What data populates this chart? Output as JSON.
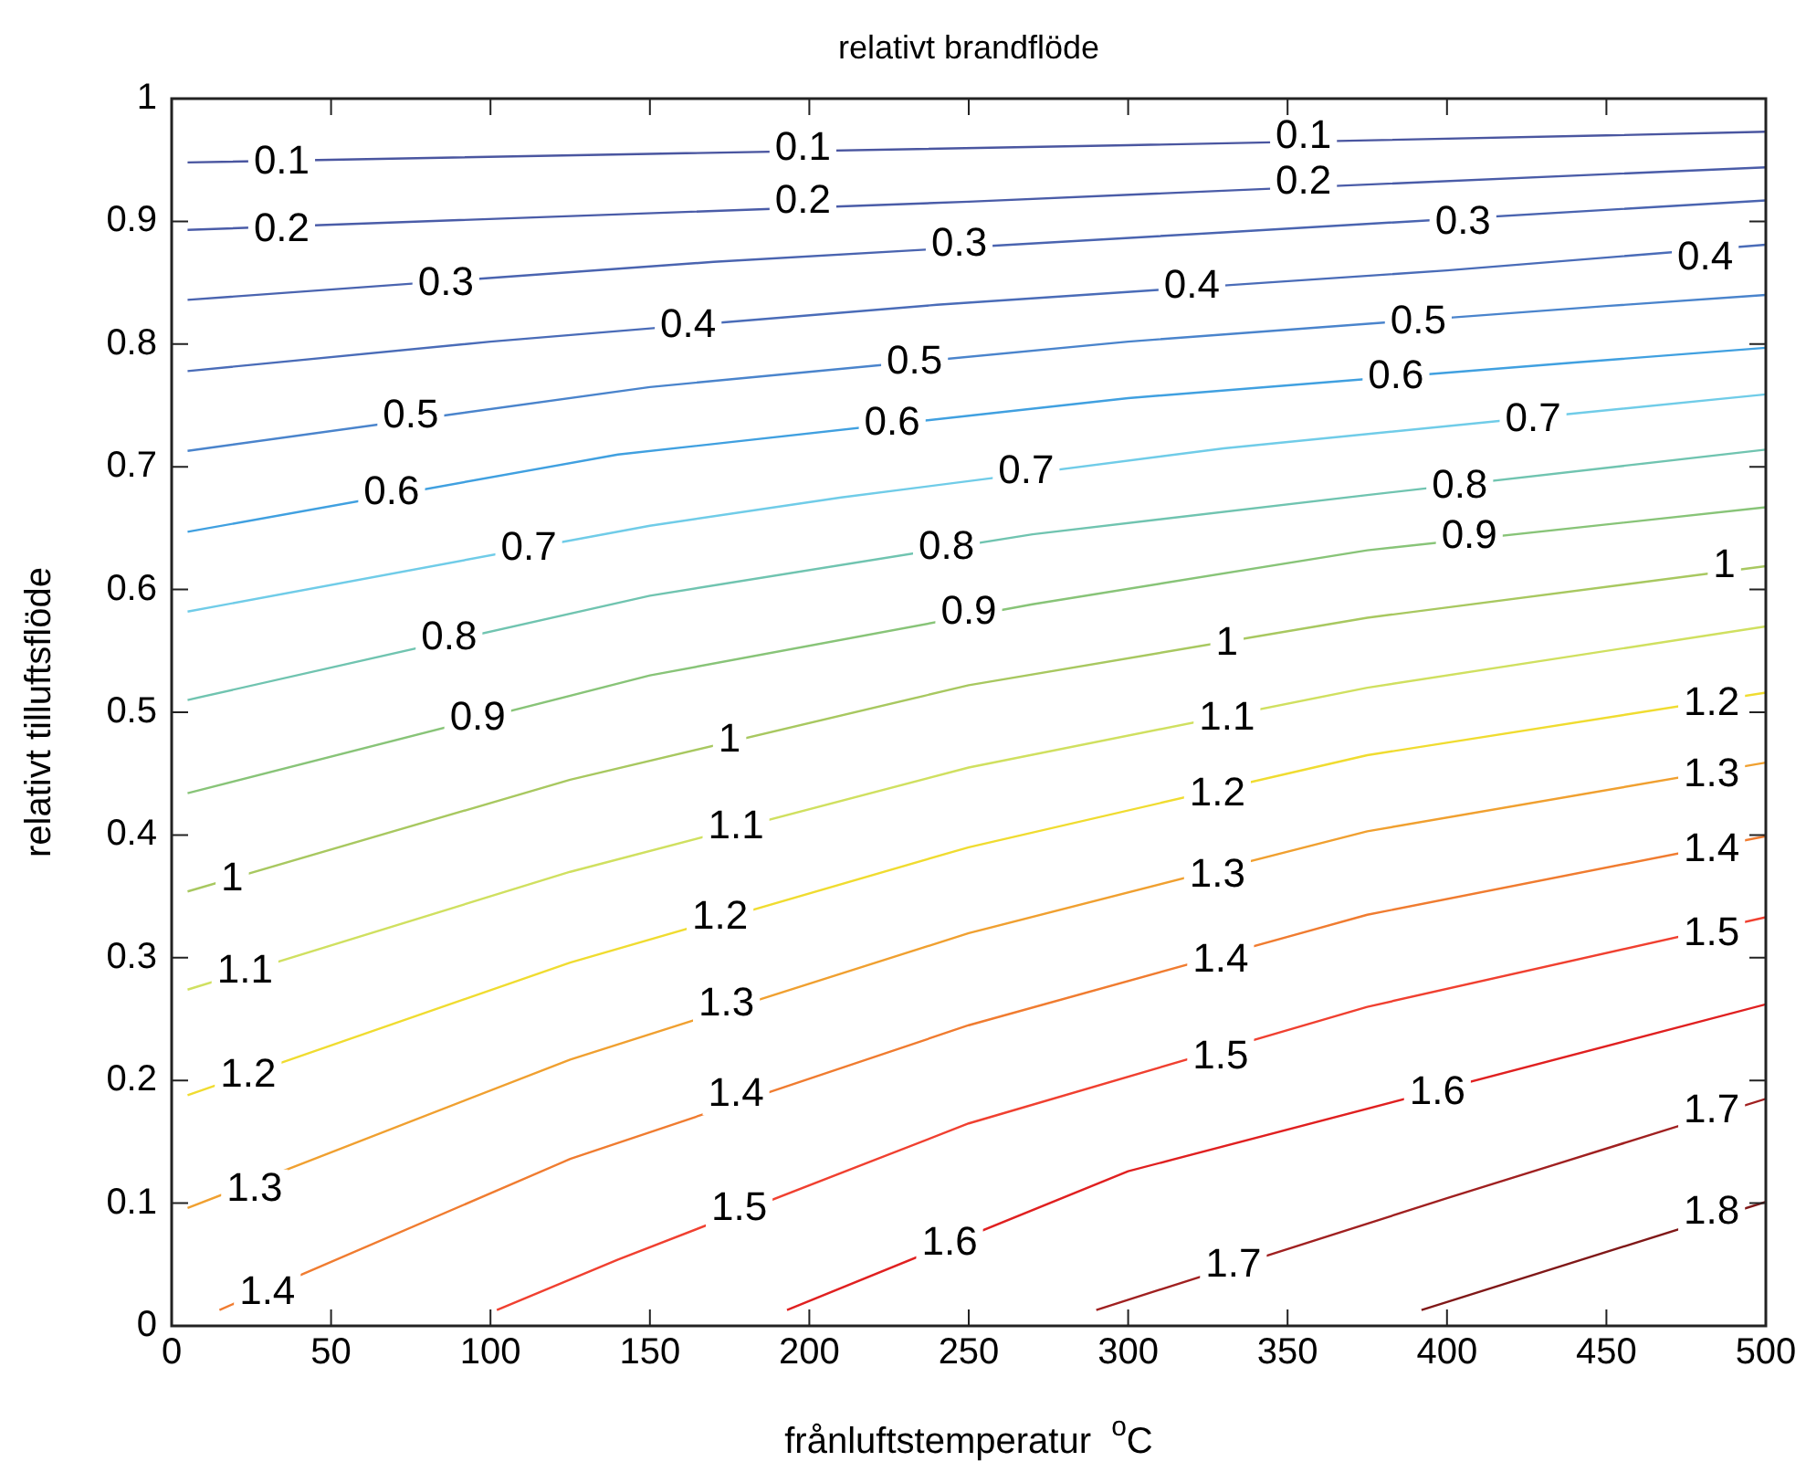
{
  "chart_data": {
    "type": "line",
    "title": "relativt brandflöde",
    "xlabel": "frånluftstemperatur  $^{o}$C",
    "ylabel": "relativt tilluftsflöde",
    "xlim": [
      0,
      500
    ],
    "xticks": [
      0,
      50,
      100,
      150,
      200,
      250,
      300,
      350,
      400,
      450,
      500
    ],
    "ylim": [
      0,
      1
    ],
    "yticks": [
      0,
      0.1,
      0.2,
      0.3,
      0.4,
      0.5,
      0.6,
      0.7,
      0.8,
      0.9,
      1
    ],
    "series": [
      {
        "color": "#4a56a0",
        "x": [
          5,
          150,
          300,
          450,
          500
        ],
        "values": [
          0.948,
          0.955,
          0.962,
          0.97,
          0.973
        ]
      },
      {
        "color": "#4a5ca8",
        "x": [
          5,
          250,
          500
        ],
        "values": [
          0.893,
          0.916,
          0.944
        ]
      },
      {
        "color": "#4a64b0",
        "x": [
          5,
          170,
          330,
          500
        ],
        "values": [
          0.836,
          0.867,
          0.891,
          0.917
        ]
      },
      {
        "color": "#4a6cb8",
        "x": [
          5,
          100,
          240,
          400,
          500
        ],
        "values": [
          0.778,
          0.802,
          0.832,
          0.86,
          0.881
        ]
      },
      {
        "color": "#4a84cc",
        "x": [
          5,
          150,
          300,
          450,
          500
        ],
        "values": [
          0.713,
          0.765,
          0.802,
          0.831,
          0.84
        ]
      },
      {
        "color": "#40a0e0",
        "x": [
          5,
          140,
          300,
          440,
          500
        ],
        "values": [
          0.647,
          0.71,
          0.756,
          0.785,
          0.797
        ]
      },
      {
        "color": "#70cce8",
        "x": [
          5,
          150,
          210,
          330,
          500
        ],
        "values": [
          0.582,
          0.652,
          0.675,
          0.715,
          0.759
        ]
      },
      {
        "color": "#70c4b0",
        "x": [
          5,
          150,
          270,
          375,
          500
        ],
        "values": [
          0.51,
          0.595,
          0.645,
          0.677,
          0.714
        ]
      },
      {
        "color": "#88c478",
        "x": [
          5,
          150,
          270,
          375,
          500
        ],
        "values": [
          0.434,
          0.53,
          0.588,
          0.632,
          0.667
        ]
      },
      {
        "color": "#a8c860",
        "x": [
          5,
          125,
          250,
          375,
          500
        ],
        "values": [
          0.354,
          0.445,
          0.522,
          0.577,
          0.619
        ]
      },
      {
        "color": "#d0e060",
        "x": [
          5,
          125,
          250,
          375,
          500
        ],
        "values": [
          0.274,
          0.37,
          0.455,
          0.52,
          0.57
        ]
      },
      {
        "color": "#f0dc30",
        "x": [
          5,
          125,
          250,
          375,
          500
        ],
        "values": [
          0.188,
          0.296,
          0.39,
          0.465,
          0.516
        ]
      },
      {
        "color": "#f0a030",
        "x": [
          5,
          125,
          250,
          375,
          500
        ],
        "values": [
          0.096,
          0.217,
          0.32,
          0.403,
          0.459
        ]
      },
      {
        "color": "#f07c30",
        "x": [
          15,
          125,
          250,
          375,
          500
        ],
        "values": [
          0.013,
          0.136,
          0.245,
          0.335,
          0.399
        ]
      },
      {
        "color": "#f04030",
        "x": [
          102,
          140,
          250,
          375,
          500
        ],
        "values": [
          0.013,
          0.054,
          0.165,
          0.26,
          0.333
        ]
      },
      {
        "color": "#e02020",
        "x": [
          193,
          300,
          500
        ],
        "values": [
          0.013,
          0.126,
          0.262
        ]
      },
      {
        "color": "#a02020",
        "x": [
          290,
          400,
          500
        ],
        "values": [
          0.013,
          0.104,
          0.185
        ]
      },
      {
        "color": "#801818",
        "x": [
          392,
          500
        ],
        "values": [
          0.013,
          0.101
        ]
      }
    ],
    "annotations": [
      {
        "text": "0.1",
        "x": 34.5,
        "y": 0.948
      },
      {
        "text": "0.1",
        "x": 198,
        "y": 0.959
      },
      {
        "text": "0.1",
        "x": 355,
        "y": 0.969
      },
      {
        "text": "0.2",
        "x": 34.5,
        "y": 0.893
      },
      {
        "text": "0.2",
        "x": 198,
        "y": 0.916
      },
      {
        "text": "0.2",
        "x": 355,
        "y": 0.932
      },
      {
        "text": "0.3",
        "x": 86,
        "y": 0.849
      },
      {
        "text": "0.3",
        "x": 247,
        "y": 0.881
      },
      {
        "text": "0.3",
        "x": 405,
        "y": 0.899
      },
      {
        "text": "0.4",
        "x": 162,
        "y": 0.815
      },
      {
        "text": "0.4",
        "x": 320,
        "y": 0.847
      },
      {
        "text": "0.4",
        "x": 481,
        "y": 0.87
      },
      {
        "text": "0.5",
        "x": 75,
        "y": 0.741
      },
      {
        "text": "0.5",
        "x": 233,
        "y": 0.785
      },
      {
        "text": "0.5",
        "x": 391,
        "y": 0.818
      },
      {
        "text": "0.6",
        "x": 69,
        "y": 0.679
      },
      {
        "text": "0.6",
        "x": 226,
        "y": 0.735
      },
      {
        "text": "0.6",
        "x": 384,
        "y": 0.773
      },
      {
        "text": "0.7",
        "x": 112,
        "y": 0.633
      },
      {
        "text": "0.7",
        "x": 268,
        "y": 0.696
      },
      {
        "text": "0.7",
        "x": 427,
        "y": 0.738
      },
      {
        "text": "0.8",
        "x": 87,
        "y": 0.56
      },
      {
        "text": "0.8",
        "x": 243,
        "y": 0.634
      },
      {
        "text": "0.8",
        "x": 404,
        "y": 0.684
      },
      {
        "text": "0.9",
        "x": 96,
        "y": 0.495
      },
      {
        "text": "0.9",
        "x": 250,
        "y": 0.581
      },
      {
        "text": "0.9",
        "x": 407,
        "y": 0.643
      },
      {
        "text": "1",
        "x": 19,
        "y": 0.364
      },
      {
        "text": "1",
        "x": 175,
        "y": 0.477
      },
      {
        "text": "1",
        "x": 331,
        "y": 0.556
      },
      {
        "text": "1",
        "x": 487,
        "y": 0.619
      },
      {
        "text": "1.1",
        "x": 23,
        "y": 0.289
      },
      {
        "text": "1.1",
        "x": 177,
        "y": 0.406
      },
      {
        "text": "1.1",
        "x": 331,
        "y": 0.495
      },
      {
        "text": "1.2",
        "x": 24,
        "y": 0.204
      },
      {
        "text": "1.2",
        "x": 172,
        "y": 0.333
      },
      {
        "text": "1.2",
        "x": 328,
        "y": 0.433
      },
      {
        "text": "1.2",
        "x": 483,
        "y": 0.507
      },
      {
        "text": "1.3",
        "x": 26,
        "y": 0.111
      },
      {
        "text": "1.3",
        "x": 174,
        "y": 0.262
      },
      {
        "text": "1.3",
        "x": 328,
        "y": 0.367
      },
      {
        "text": "1.3",
        "x": 483,
        "y": 0.449
      },
      {
        "text": "1.4",
        "x": 30,
        "y": 0.027
      },
      {
        "text": "1.4",
        "x": 177,
        "y": 0.188
      },
      {
        "text": "1.4",
        "x": 329,
        "y": 0.298
      },
      {
        "text": "1.4",
        "x": 483,
        "y": 0.388
      },
      {
        "text": "1.5",
        "x": 178,
        "y": 0.095
      },
      {
        "text": "1.5",
        "x": 329,
        "y": 0.219
      },
      {
        "text": "1.5",
        "x": 483,
        "y": 0.319
      },
      {
        "text": "1.6",
        "x": 244,
        "y": 0.067
      },
      {
        "text": "1.6",
        "x": 397,
        "y": 0.19
      },
      {
        "text": "1.7",
        "x": 333,
        "y": 0.049
      },
      {
        "text": "1.7",
        "x": 483,
        "y": 0.175
      },
      {
        "text": "1.8",
        "x": 483,
        "y": 0.092
      }
    ]
  }
}
